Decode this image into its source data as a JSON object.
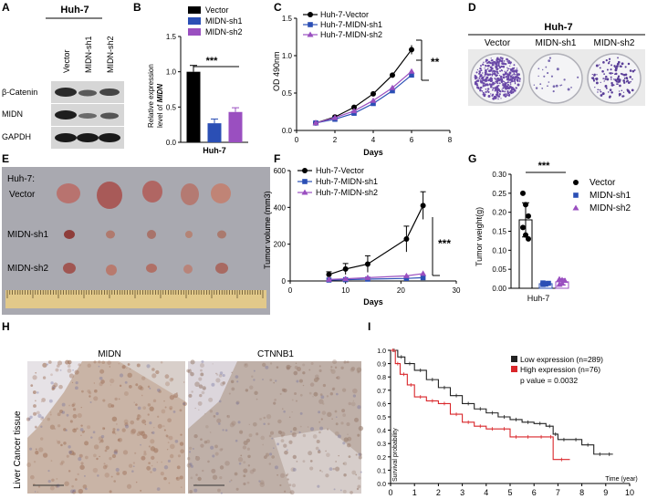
{
  "panels": {
    "A": {
      "letter": "A",
      "cell_line": "Huh-7",
      "lanes": [
        "Vector",
        "MIDN-sh1",
        "MIDN-sh2"
      ],
      "rows": [
        "β-Catenin",
        "MIDN",
        "GAPDH"
      ]
    },
    "B": {
      "letter": "B"
    },
    "C": {
      "letter": "C"
    },
    "D": {
      "letter": "D",
      "cell_line": "Huh-7",
      "lanes": [
        "Vector",
        "MIDN-sh1",
        "MIDN-sh2"
      ]
    },
    "E": {
      "letter": "E",
      "header": "Huh-7:",
      "rows": [
        "Vector",
        "MIDN-sh1",
        "MIDN-sh2"
      ]
    },
    "F": {
      "letter": "F"
    },
    "G": {
      "letter": "G"
    },
    "H": {
      "letter": "H",
      "side_label": "Liver Cancer tissue",
      "stains": [
        "MIDN",
        "CTNNB1"
      ]
    },
    "I": {
      "letter": "I"
    }
  },
  "colors": {
    "vector": "#000000",
    "sh1": "#2b4fb5",
    "sh2": "#9a4fc0",
    "low": "#222222",
    "high": "#d9262a"
  },
  "chart_data": [
    {
      "id": "B",
      "type": "bar",
      "ylabel": "Relative expression level of MIDN",
      "xlabel": "Huh-7",
      "ylim": [
        0,
        1.5
      ],
      "yticks": [
        "0.0",
        "0.5",
        "1.0",
        "1.5"
      ],
      "series": [
        {
          "name": "Vector",
          "values": [
            1.0
          ],
          "error": [
            0.09
          ]
        },
        {
          "name": "MIDN-sh1",
          "values": [
            0.27
          ],
          "error": [
            0.06
          ]
        },
        {
          "name": "MIDN-sh2",
          "values": [
            0.43
          ],
          "error": [
            0.06
          ]
        }
      ],
      "significance": "***",
      "legend": "top-right"
    },
    {
      "id": "C",
      "type": "line",
      "xlabel": "Days",
      "ylabel": "OD 490nm",
      "xlim": [
        0,
        8
      ],
      "ylim": [
        0.0,
        1.5
      ],
      "xticks": [
        "0",
        "2",
        "4",
        "6",
        "8"
      ],
      "yticks": [
        "0.0",
        "0.5",
        "1.0",
        "1.5"
      ],
      "x": [
        1,
        2,
        3,
        4,
        5,
        6
      ],
      "series": [
        {
          "name": "Huh-7-Vector",
          "values": [
            0.1,
            0.18,
            0.31,
            0.49,
            0.74,
            1.08
          ]
        },
        {
          "name": "Huh-7-MIDN-sh1",
          "values": [
            0.1,
            0.15,
            0.23,
            0.36,
            0.53,
            0.74
          ]
        },
        {
          "name": "Huh-7-MIDN-sh2",
          "values": [
            0.1,
            0.17,
            0.26,
            0.4,
            0.57,
            0.79
          ]
        }
      ],
      "significance": "**",
      "legend": "top-left"
    },
    {
      "id": "F",
      "type": "line",
      "xlabel": "Days",
      "ylabel": "Tumor volume (mm3)",
      "xlim": [
        0,
        30
      ],
      "ylim": [
        0,
        600
      ],
      "xticks": [
        "0",
        "10",
        "20",
        "30"
      ],
      "yticks": [
        "0",
        "200",
        "400",
        "600"
      ],
      "x": [
        7,
        10,
        14,
        21,
        24
      ],
      "series": [
        {
          "name": "Huh-7-Vector",
          "values": [
            35,
            65,
            92,
            228,
            410
          ]
        },
        {
          "name": "Huh-7-MIDN-sh1",
          "values": [
            5,
            7,
            10,
            14,
            18
          ]
        },
        {
          "name": "Huh-7-MIDN-sh2",
          "values": [
            8,
            12,
            18,
            28,
            40
          ]
        }
      ],
      "significance": "***",
      "legend": "top-left"
    },
    {
      "id": "G",
      "type": "bar",
      "ylabel": "Tumor weight(g)",
      "xlabel": "Huh-7",
      "ylim": [
        0,
        0.3
      ],
      "yticks": [
        "0.00",
        "0.05",
        "0.10",
        "0.15",
        "0.20",
        "0.25",
        "0.30"
      ],
      "series": [
        {
          "name": "Vector",
          "values": [
            0.18
          ],
          "error": [
            0.045
          ],
          "points": [
            0.25,
            0.22,
            0.19,
            0.16,
            0.14,
            0.13
          ]
        },
        {
          "name": "MIDN-sh1",
          "values": [
            0.012
          ],
          "error": [
            0.003
          ],
          "points": [
            0.01,
            0.012,
            0.013,
            0.014,
            0.011
          ]
        },
        {
          "name": "MIDN-sh2",
          "values": [
            0.017
          ],
          "error": [
            0.008
          ],
          "points": [
            0.01,
            0.013,
            0.02,
            0.024,
            0.022
          ]
        }
      ],
      "significance": "***",
      "legend": "right"
    },
    {
      "id": "I",
      "type": "line",
      "xlabel": "Time (year)",
      "ylabel": "Survival probability",
      "xlim": [
        0,
        10
      ],
      "ylim": [
        0,
        1.0
      ],
      "xticks": [
        "0",
        "1",
        "2",
        "3",
        "4",
        "5",
        "6",
        "7",
        "8",
        "9",
        "10"
      ],
      "yticks": [
        "0.0",
        "0.1",
        "0.2",
        "0.3",
        "0.4",
        "0.5",
        "0.6",
        "0.7",
        "0.8",
        "0.9",
        "1.0"
      ],
      "series": [
        {
          "name": "Low expression (n=289)",
          "x": [
            0,
            0.3,
            0.6,
            1.0,
            1.5,
            2.0,
            2.5,
            3.0,
            3.5,
            4.0,
            4.5,
            5.0,
            5.5,
            6.0,
            6.5,
            6.8,
            7.0,
            7.5,
            8.0,
            8.5,
            9.0,
            9.3
          ],
          "values": [
            1.0,
            0.95,
            0.9,
            0.85,
            0.78,
            0.72,
            0.66,
            0.6,
            0.56,
            0.53,
            0.5,
            0.48,
            0.46,
            0.45,
            0.43,
            0.37,
            0.33,
            0.33,
            0.29,
            0.22,
            0.22,
            0.22
          ]
        },
        {
          "name": "High expression (n=76)",
          "x": [
            0,
            0.2,
            0.4,
            0.7,
            1.0,
            1.5,
            2.0,
            2.5,
            3.0,
            3.5,
            4.0,
            4.5,
            5.0,
            5.5,
            6.0,
            6.6,
            6.8,
            7.5
          ],
          "values": [
            1.0,
            0.9,
            0.82,
            0.74,
            0.65,
            0.62,
            0.6,
            0.52,
            0.46,
            0.43,
            0.41,
            0.41,
            0.35,
            0.35,
            0.35,
            0.35,
            0.18,
            0.18
          ]
        }
      ],
      "annotation": "p value = 0.0032",
      "legend": "top-right"
    }
  ]
}
